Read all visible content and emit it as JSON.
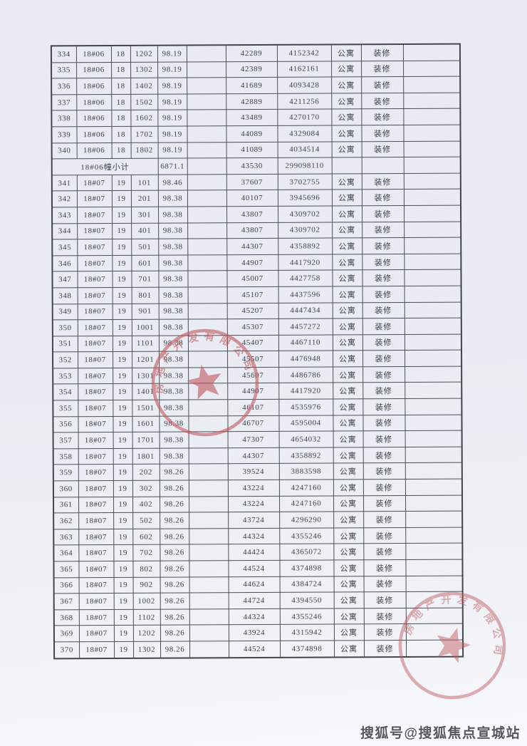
{
  "table": {
    "rows": [
      [
        "334",
        "18#06",
        "18",
        "1202",
        "98.19",
        "42289",
        "4152342",
        "公寓",
        "装修"
      ],
      [
        "335",
        "18#06",
        "18",
        "1302",
        "98.19",
        "42389",
        "4162161",
        "公寓",
        "装修"
      ],
      [
        "336",
        "18#06",
        "18",
        "1402",
        "98.19",
        "41689",
        "4093428",
        "公寓",
        "装修"
      ],
      [
        "337",
        "18#06",
        "18",
        "1502",
        "98.19",
        "42889",
        "4211256",
        "公寓",
        "装修"
      ],
      [
        "338",
        "18#06",
        "18",
        "1602",
        "98.19",
        "43489",
        "4270170",
        "公寓",
        "装修"
      ],
      [
        "339",
        "18#06",
        "18",
        "1702",
        "98.19",
        "44089",
        "4329084",
        "公寓",
        "装修"
      ],
      [
        "340",
        "18#06",
        "18",
        "1802",
        "98.19",
        "41089",
        "4034514",
        "公寓",
        "装修"
      ],
      {
        "subtotal_label": "18#06幢小计",
        "area": "6871.1",
        "unit_price": "43530",
        "total_price": "299098110"
      },
      [
        "341",
        "18#07",
        "19",
        "101",
        "98.46",
        "37607",
        "3702755",
        "公寓",
        "装修"
      ],
      [
        "342",
        "18#07",
        "19",
        "201",
        "98.38",
        "40107",
        "3945696",
        "公寓",
        "装修"
      ],
      [
        "343",
        "18#07",
        "19",
        "301",
        "98.38",
        "43807",
        "4309702",
        "公寓",
        "装修"
      ],
      [
        "344",
        "18#07",
        "19",
        "401",
        "98.38",
        "43807",
        "4309702",
        "公寓",
        "装修"
      ],
      [
        "345",
        "18#07",
        "19",
        "501",
        "98.38",
        "44307",
        "4358892",
        "公寓",
        "装修"
      ],
      [
        "346",
        "18#07",
        "19",
        "601",
        "98.38",
        "44907",
        "4417920",
        "公寓",
        "装修"
      ],
      [
        "347",
        "18#07",
        "19",
        "701",
        "98.38",
        "45007",
        "4427758",
        "公寓",
        "装修"
      ],
      [
        "348",
        "18#07",
        "19",
        "801",
        "98.38",
        "45107",
        "4437596",
        "公寓",
        "装修"
      ],
      [
        "349",
        "18#07",
        "19",
        "901",
        "98.38",
        "45207",
        "4447434",
        "公寓",
        "装修"
      ],
      [
        "350",
        "18#07",
        "19",
        "1001",
        "98.38",
        "45307",
        "4457272",
        "公寓",
        "装修"
      ],
      [
        "351",
        "18#07",
        "19",
        "1101",
        "98.38",
        "45407",
        "4467110",
        "公寓",
        "装修"
      ],
      [
        "352",
        "18#07",
        "19",
        "1201",
        "98.38",
        "45507",
        "4476948",
        "公寓",
        "装修"
      ],
      [
        "353",
        "18#07",
        "19",
        "1301",
        "98.38",
        "45607",
        "4486786",
        "公寓",
        "装修"
      ],
      [
        "354",
        "18#07",
        "19",
        "1401",
        "98.38",
        "44907",
        "4417920",
        "公寓",
        "装修"
      ],
      [
        "355",
        "18#07",
        "19",
        "1501",
        "98.38",
        "46107",
        "4535976",
        "公寓",
        "装修"
      ],
      [
        "356",
        "18#07",
        "19",
        "1601",
        "98.38",
        "46707",
        "4595004",
        "公寓",
        "装修"
      ],
      [
        "357",
        "18#07",
        "19",
        "1701",
        "98.38",
        "47307",
        "4654032",
        "公寓",
        "装修"
      ],
      [
        "358",
        "18#07",
        "19",
        "1801",
        "98.38",
        "44307",
        "4358892",
        "公寓",
        "装修"
      ],
      [
        "359",
        "18#07",
        "19",
        "202",
        "98.26",
        "39524",
        "3883598",
        "公寓",
        "装修"
      ],
      [
        "360",
        "18#07",
        "19",
        "302",
        "98.26",
        "43224",
        "4247160",
        "公寓",
        "装修"
      ],
      [
        "361",
        "18#07",
        "19",
        "402",
        "98.26",
        "43224",
        "4247160",
        "公寓",
        "装修"
      ],
      [
        "362",
        "18#07",
        "19",
        "502",
        "98.26",
        "43724",
        "4296290",
        "公寓",
        "装修"
      ],
      [
        "363",
        "18#07",
        "19",
        "602",
        "98.26",
        "44324",
        "4355246",
        "公寓",
        "装修"
      ],
      [
        "364",
        "18#07",
        "19",
        "702",
        "98.26",
        "44424",
        "4365072",
        "公寓",
        "装修"
      ],
      [
        "365",
        "18#07",
        "19",
        "802",
        "98.26",
        "44524",
        "4374898",
        "公寓",
        "装修"
      ],
      [
        "366",
        "18#07",
        "19",
        "902",
        "98.26",
        "44624",
        "4384724",
        "公寓",
        "装修"
      ],
      [
        "367",
        "18#07",
        "19",
        "1002",
        "98.26",
        "44724",
        "4394550",
        "公寓",
        "装修"
      ],
      [
        "368",
        "18#07",
        "19",
        "1102",
        "98.26",
        "44324",
        "4355246",
        "公寓",
        "装修"
      ],
      [
        "369",
        "18#07",
        "19",
        "1202",
        "98.26",
        "43924",
        "4315942",
        "公寓",
        "装修"
      ],
      [
        "370",
        "18#07",
        "19",
        "1302",
        "98.26",
        "44524",
        "4374898",
        "公寓",
        "装修"
      ]
    ]
  },
  "seals": {
    "arc_text": "房地产开发有限公司"
  },
  "watermark": {
    "text": "搜狐号@搜狐焦点宣城站"
  },
  "colors": {
    "seal_red": "#c25b61",
    "paper": "#e9edf3",
    "ink": "#383d45"
  }
}
